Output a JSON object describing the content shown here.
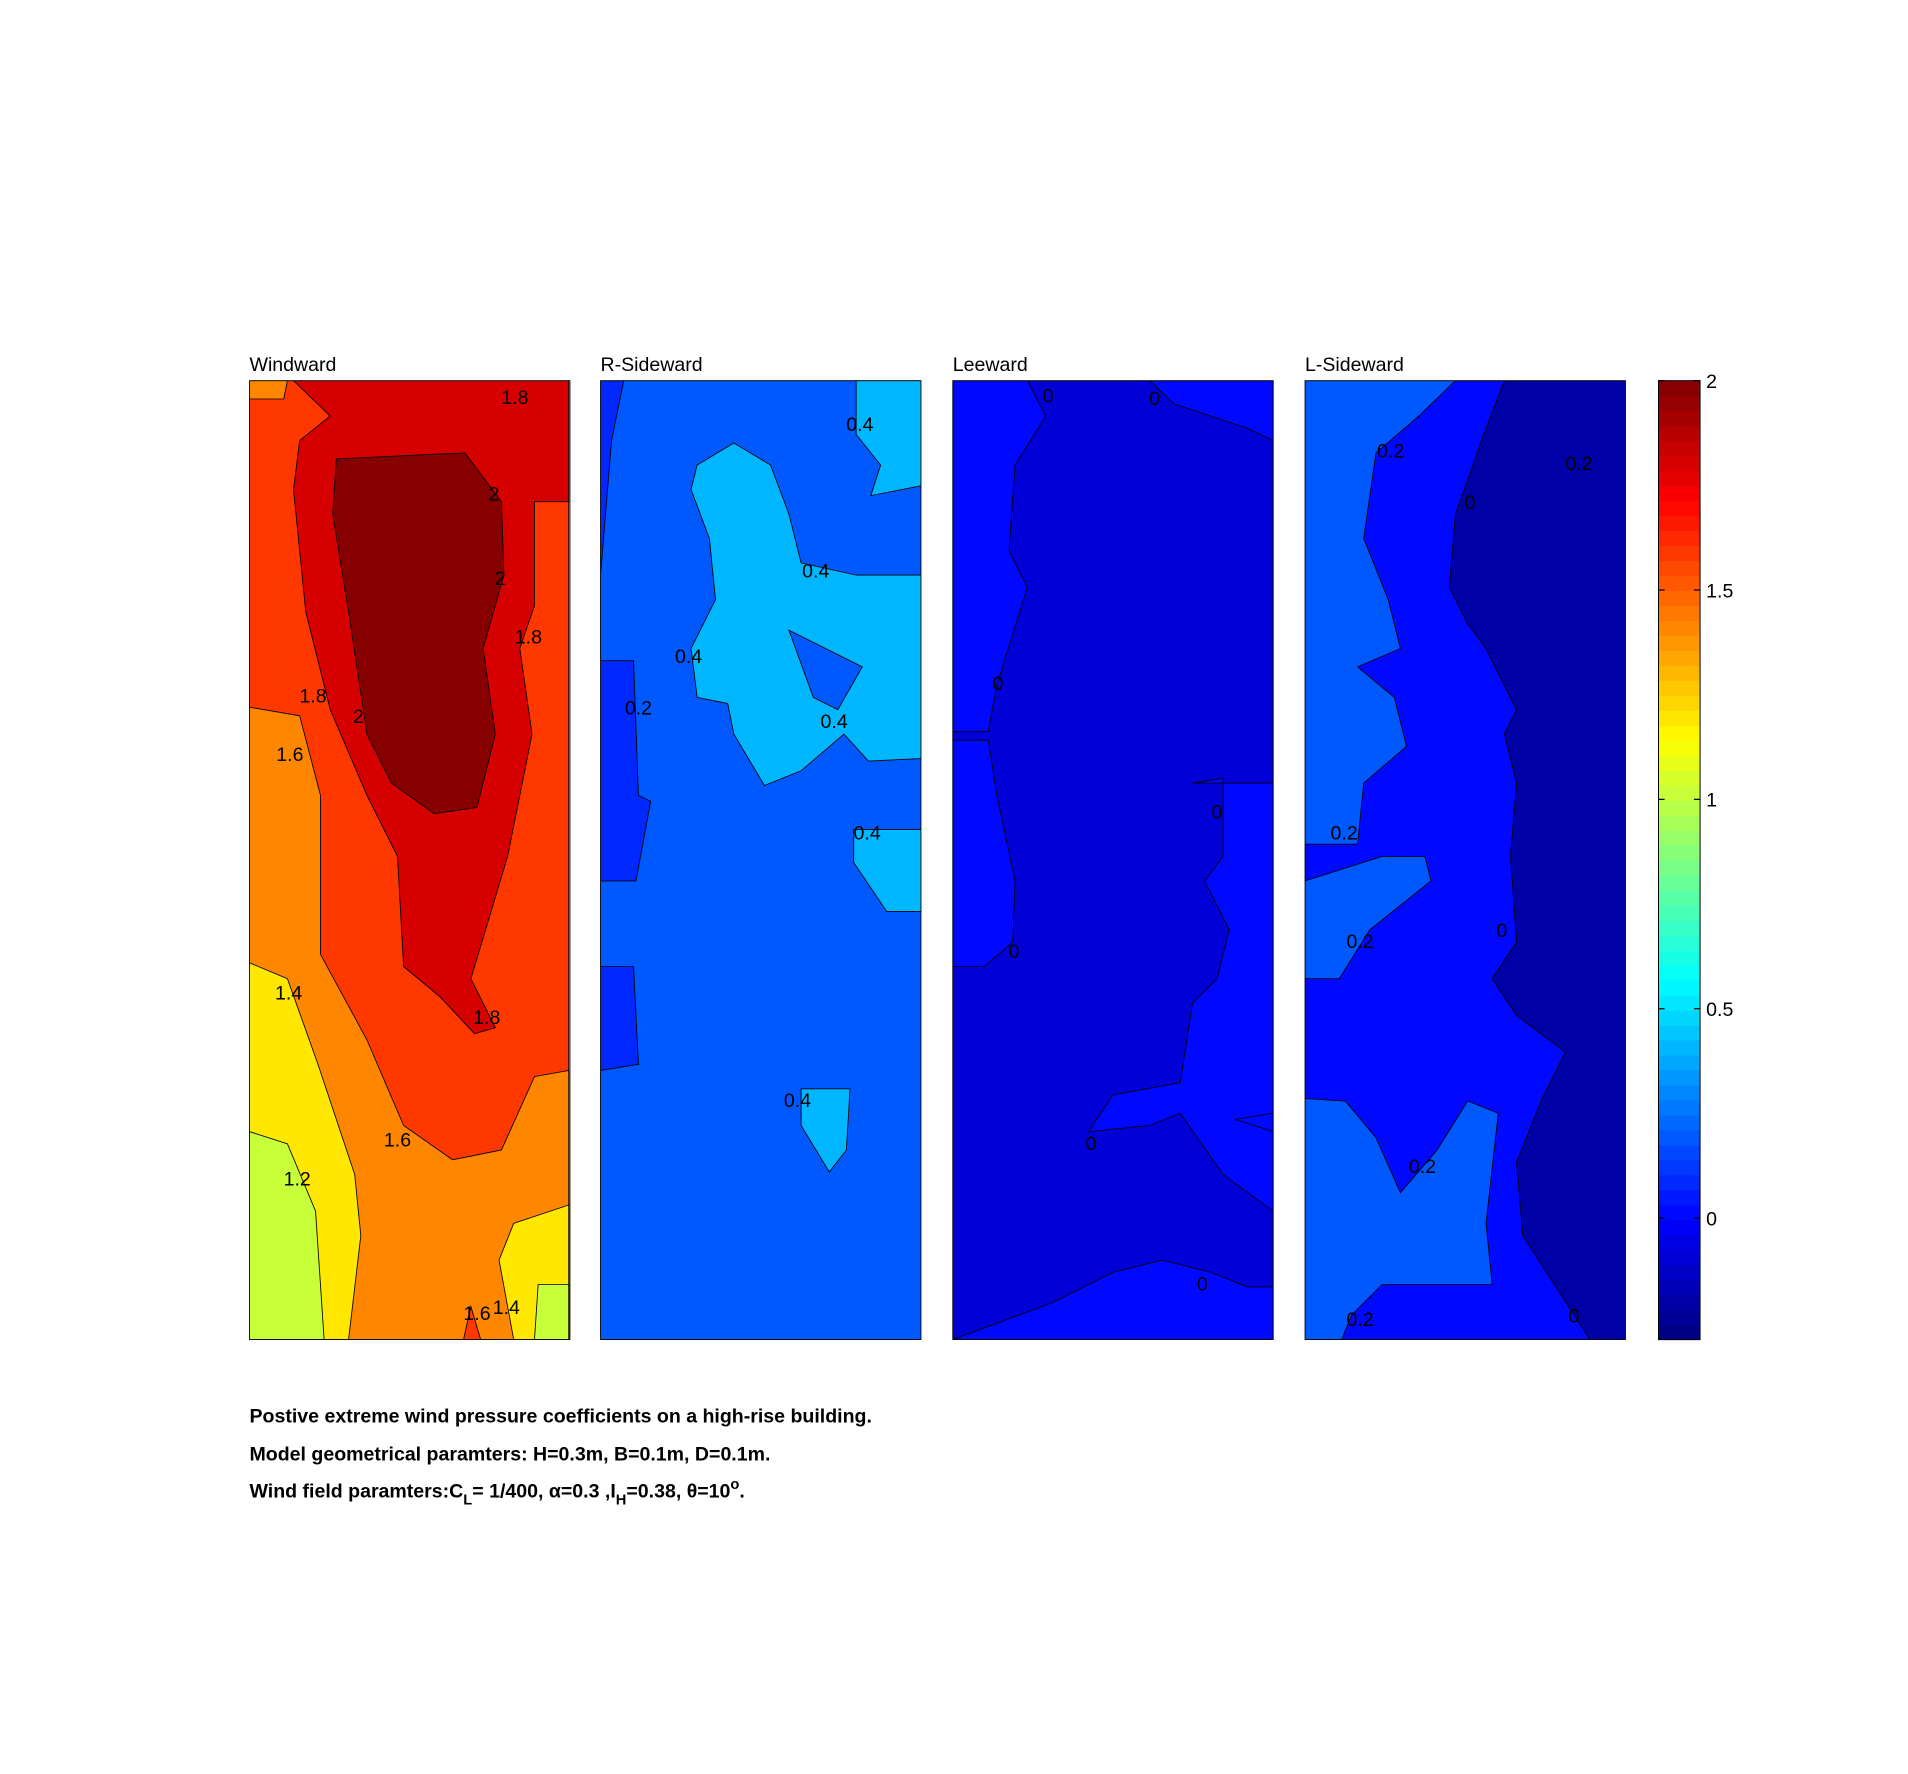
{
  "chart_data": {
    "type": "contour",
    "panels": [
      {
        "title": "Windward",
        "regions": [
          1.6,
          1.4,
          1.4,
          1.2,
          1.2,
          1.0,
          1.0,
          1.6,
          1.8,
          2
        ],
        "contour_labels": [
          1.8,
          2,
          2,
          1.8,
          1.8,
          2,
          1.6,
          1.4,
          1.8,
          1.6,
          1.2,
          1.6,
          1.4
        ]
      },
      {
        "title": "R-Sideward",
        "regions": [
          0.2,
          0.1,
          0.1,
          0.1,
          0.4,
          0.4,
          0.2,
          0.4,
          0.4
        ],
        "contour_labels": [
          0.4,
          0.4,
          0.4,
          0.4,
          0.4,
          0.4,
          0.2
        ]
      },
      {
        "title": "Leeward",
        "regions": [
          -0.1,
          0,
          0,
          0,
          0,
          0
        ],
        "contour_labels": [
          0,
          0,
          0,
          0,
          0,
          0,
          0
        ]
      },
      {
        "title": "L-Sideward",
        "regions": [
          -0.2,
          0,
          0.2,
          0.2,
          0.2
        ],
        "contour_labels": [
          0.2,
          0.2,
          0,
          0.2,
          0.2,
          0,
          0.2,
          0.2,
          0
        ]
      }
    ],
    "clim": [
      -0.29,
      2
    ],
    "cticks": [
      0,
      0.5,
      1,
      1.5,
      2
    ],
    "notes": [
      "Postive extreme  wind pressure coefficients on a high-rise building.",
      "Model geometrical paramters: H=0.3m, B=0.1m, D=0.1m."
    ],
    "parameters": [
      "Wind field paramters:C",
      "L",
      "= 1/400, α=0.3 ,I",
      "H",
      "=0.38, θ=10",
      "o",
      "."
    ]
  }
}
